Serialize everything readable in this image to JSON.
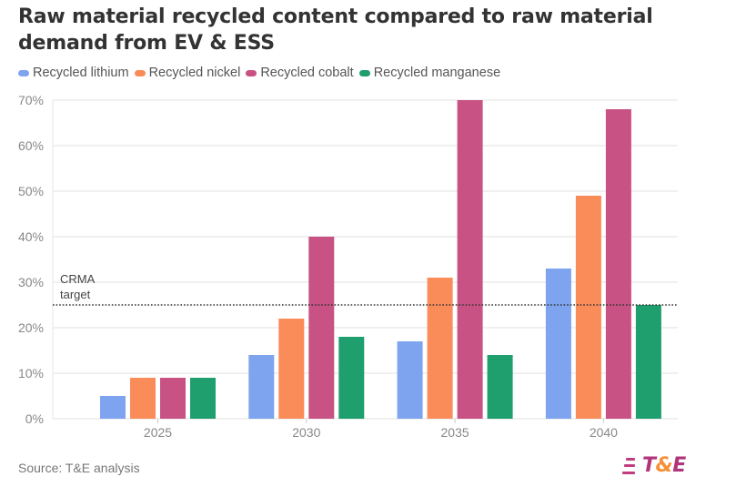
{
  "title": "Raw material recycled content compared to raw material demand from EV & ESS",
  "source": "Source: T&E analysis",
  "logo": {
    "part1": "T",
    "amp": "&",
    "part2": "E",
    "icon": "speed-lines-icon"
  },
  "colors": {
    "lithium": "#7ea4f0",
    "nickel": "#fa8c5a",
    "cobalt": "#c85283",
    "manganese": "#1f9e6e",
    "grid": "#e8e8e8",
    "axis_text": "#888888",
    "target_line": "#333333"
  },
  "chart_data": {
    "type": "bar",
    "title": "Raw material recycled content compared to raw material demand from EV & ESS",
    "xlabel": "",
    "ylabel": "",
    "categories": [
      "2025",
      "2030",
      "2035",
      "2040"
    ],
    "series": [
      {
        "name": "Recycled lithium",
        "key": "lithium",
        "values": [
          5,
          14,
          17,
          33
        ]
      },
      {
        "name": "Recycled nickel",
        "key": "nickel",
        "values": [
          9,
          22,
          31,
          49
        ]
      },
      {
        "name": "Recycled cobalt",
        "key": "cobalt",
        "values": [
          9,
          40,
          70,
          68
        ]
      },
      {
        "name": "Recycled manganese",
        "key": "manganese",
        "values": [
          9,
          18,
          14,
          25
        ]
      }
    ],
    "ylim": [
      0,
      70
    ],
    "yticks": [
      0,
      10,
      20,
      30,
      40,
      50,
      60,
      70
    ],
    "ytick_format": "percent",
    "grid": true,
    "legend_position": "top-left",
    "annotations": [
      {
        "type": "reference-line",
        "value": 25,
        "label_line1": "CRMA",
        "label_line2": "target",
        "style": "dotted"
      }
    ]
  }
}
